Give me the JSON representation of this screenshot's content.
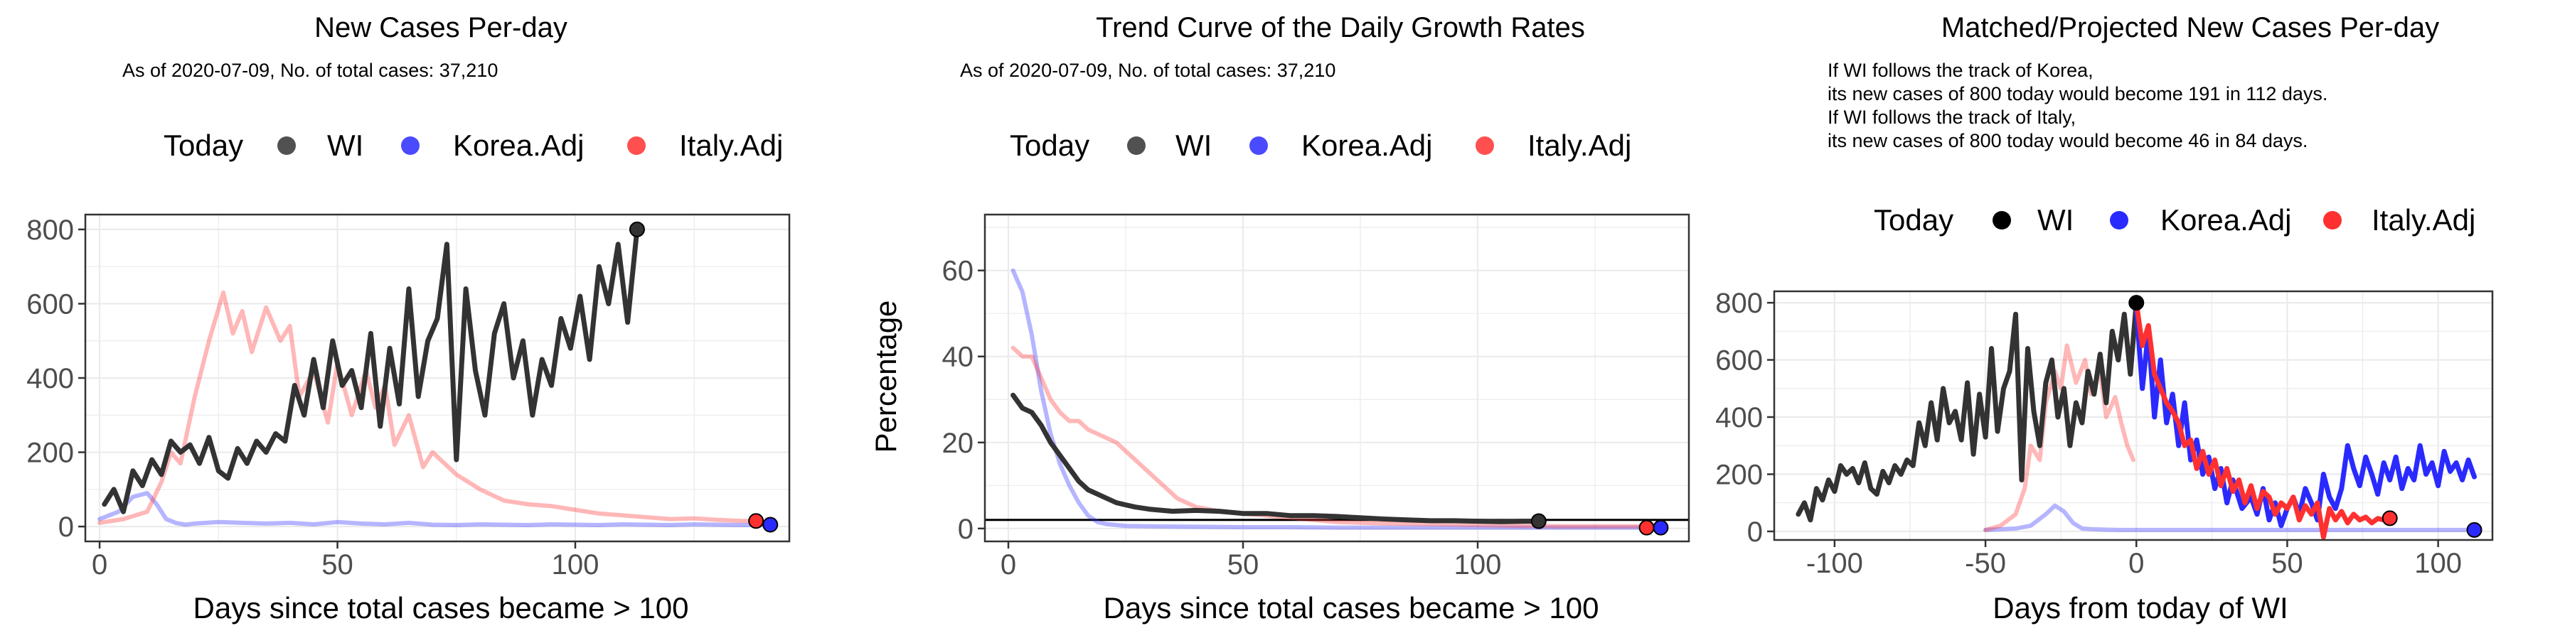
{
  "colors": {
    "wi": "#333333",
    "korea": "#2a2aff",
    "italy": "#ff3030",
    "today": "#000000"
  },
  "chart_data": [
    {
      "type": "line",
      "title": "New Cases Per-day",
      "subtitle": "As of 2020-07-09, No. of total cases: 37,210",
      "notes": [],
      "legend_title": "Today",
      "legend": [
        "WI",
        "Korea.Adj",
        "Italy.Adj"
      ],
      "xlabel": "Days since total cases became > 100",
      "ylabel": "",
      "xlim": [
        -3,
        145
      ],
      "ylim": [
        -40,
        840
      ],
      "xticks": [
        0,
        50,
        100
      ],
      "yticks": [
        0,
        200,
        400,
        600,
        800
      ],
      "grid": true,
      "series": [
        {
          "name": "Korea.Adj",
          "color": "#2a2aff",
          "opacity": 0.35,
          "x": [
            0,
            4,
            7,
            10,
            12,
            14,
            16,
            18,
            20,
            25,
            30,
            35,
            40,
            45,
            50,
            55,
            60,
            65,
            70,
            75,
            80,
            85,
            90,
            95,
            100,
            105,
            110,
            115,
            120,
            125,
            130,
            135,
            140
          ],
          "y": [
            20,
            40,
            80,
            90,
            60,
            20,
            10,
            5,
            8,
            12,
            10,
            8,
            10,
            6,
            12,
            8,
            6,
            10,
            5,
            4,
            6,
            5,
            4,
            6,
            5,
            4,
            6,
            5,
            4,
            6,
            5,
            4,
            5
          ]
        },
        {
          "name": "Italy.Adj",
          "color": "#ff3030",
          "opacity": 0.35,
          "x": [
            0,
            5,
            10,
            13,
            15,
            17,
            20,
            23,
            26,
            28,
            30,
            32,
            35,
            38,
            40,
            42,
            45,
            48,
            50,
            53,
            56,
            58,
            60,
            62,
            65,
            68,
            70,
            75,
            80,
            85,
            90,
            95,
            100,
            105,
            110,
            115,
            120,
            125,
            130,
            135,
            138
          ],
          "y": [
            10,
            20,
            40,
            120,
            200,
            170,
            350,
            500,
            630,
            520,
            580,
            470,
            590,
            500,
            540,
            350,
            420,
            280,
            440,
            300,
            420,
            320,
            380,
            220,
            300,
            160,
            200,
            140,
            100,
            70,
            60,
            55,
            45,
            35,
            30,
            25,
            20,
            22,
            18,
            15,
            15
          ]
        },
        {
          "name": "WI",
          "color": "#333333",
          "opacity": 1,
          "x": [
            1,
            3,
            5,
            7,
            9,
            11,
            13,
            15,
            17,
            19,
            21,
            23,
            25,
            27,
            29,
            31,
            33,
            35,
            37,
            39,
            41,
            43,
            45,
            47,
            49,
            51,
            53,
            55,
            57,
            59,
            61,
            63,
            65,
            67,
            69,
            71,
            73,
            75,
            77,
            79,
            81,
            83,
            85,
            87,
            89,
            91,
            93,
            95,
            97,
            99,
            101,
            103,
            105,
            107,
            109,
            111,
            113
          ],
          "y": [
            60,
            100,
            40,
            150,
            110,
            180,
            140,
            230,
            200,
            220,
            170,
            240,
            150,
            130,
            210,
            170,
            230,
            200,
            250,
            230,
            380,
            300,
            450,
            320,
            500,
            380,
            420,
            320,
            520,
            270,
            480,
            330,
            640,
            350,
            500,
            560,
            760,
            180,
            640,
            420,
            300,
            520,
            600,
            400,
            500,
            300,
            450,
            380,
            560,
            480,
            620,
            450,
            700,
            600,
            760,
            550,
            800
          ]
        }
      ],
      "today_points": [
        {
          "name": "WI",
          "x": 113,
          "y": 800,
          "color": "#333333"
        },
        {
          "name": "Italy.Adj",
          "x": 138,
          "y": 15,
          "color": "#ff3030"
        },
        {
          "name": "Korea.Adj",
          "x": 141,
          "y": 5,
          "color": "#2a2aff"
        }
      ],
      "hline": null
    },
    {
      "type": "line",
      "title": "Trend Curve of the Daily Growth Rates",
      "subtitle": "As of 2020-07-09, No. of total cases: 37,210",
      "notes": [],
      "legend_title": "Today",
      "legend": [
        "WI",
        "Korea.Adj",
        "Italy.Adj"
      ],
      "xlabel": "Days since total cases became > 100",
      "ylabel": "Percentage",
      "xlim": [
        -5,
        145
      ],
      "ylim": [
        -3,
        73
      ],
      "xticks": [
        0,
        50,
        100
      ],
      "yticks": [
        0,
        20,
        40,
        60
      ],
      "grid": true,
      "series": [
        {
          "name": "Korea.Adj",
          "color": "#2a2aff",
          "opacity": 0.35,
          "x": [
            1,
            3,
            5,
            7,
            9,
            11,
            13,
            15,
            17,
            19,
            21,
            25,
            30,
            40,
            50,
            60,
            70,
            80,
            90,
            100,
            110,
            120,
            130,
            140
          ],
          "y": [
            60,
            55,
            45,
            32,
            22,
            15,
            10,
            6,
            3,
            1.5,
            1,
            0.6,
            0.5,
            0.4,
            0.3,
            0.3,
            0.2,
            0.2,
            0.2,
            0.2,
            0.2,
            0.2,
            0.2,
            0.2
          ]
        },
        {
          "name": "Italy.Adj",
          "color": "#ff3030",
          "opacity": 0.35,
          "x": [
            1,
            3,
            5,
            7,
            9,
            11,
            13,
            15,
            17,
            19,
            21,
            23,
            25,
            27,
            30,
            33,
            36,
            40,
            45,
            50,
            55,
            60,
            65,
            70,
            80,
            90,
            100,
            110,
            120,
            130,
            138
          ],
          "y": [
            42,
            40,
            40,
            35,
            30,
            27,
            25,
            25,
            23,
            22,
            21,
            20,
            18,
            16,
            13,
            10,
            7,
            5,
            4,
            3.5,
            3,
            2.5,
            2,
            1.5,
            1.2,
            1,
            0.8,
            0.6,
            0.5,
            0.5,
            0.5
          ]
        },
        {
          "name": "WI",
          "color": "#333333",
          "opacity": 1,
          "x": [
            1,
            3,
            5,
            7,
            9,
            11,
            13,
            15,
            17,
            19,
            21,
            23,
            25,
            27,
            30,
            35,
            40,
            45,
            50,
            55,
            60,
            65,
            70,
            75,
            80,
            85,
            90,
            95,
            100,
            105,
            110,
            113
          ],
          "y": [
            31,
            28,
            27,
            24,
            20,
            17,
            14,
            11,
            9,
            8,
            7,
            6,
            5.5,
            5,
            4.5,
            4,
            4.2,
            4,
            3.5,
            3.5,
            3,
            3,
            2.8,
            2.5,
            2.2,
            2,
            1.8,
            1.8,
            1.7,
            1.6,
            1.7,
            1.7
          ]
        }
      ],
      "today_points": [
        {
          "name": "WI",
          "x": 113,
          "y": 1.7,
          "color": "#333333"
        },
        {
          "name": "Italy.Adj",
          "x": 136,
          "y": 0.2,
          "color": "#ff3030"
        },
        {
          "name": "Korea.Adj",
          "x": 139,
          "y": 0.2,
          "color": "#2a2aff"
        }
      ],
      "hline": 2
    },
    {
      "type": "line",
      "title": "Matched/Projected New Cases Per-day",
      "subtitle": "",
      "notes": [
        "If WI follows the track of Korea,",
        "its new cases of 800 today would become 191 in 112 days.",
        "If WI follows the track of Italy,",
        "its new cases of 800 today would become 46 in 84 days."
      ],
      "legend_title": "Today",
      "legend": [
        "WI",
        "Korea.Adj",
        "Italy.Adj"
      ],
      "xlabel": "Days from today of WI",
      "ylabel": "",
      "xlim": [
        -120,
        118
      ],
      "ylim": [
        -30,
        840
      ],
      "xticks": [
        -100,
        -50,
        0,
        50,
        100
      ],
      "yticks": [
        0,
        200,
        400,
        600,
        800
      ],
      "grid": true,
      "series": [
        {
          "name": "Korea.Adj",
          "color": "#2a2aff",
          "opacity": 0.35,
          "x": [
            -50,
            -40,
            -35,
            -30,
            -27,
            -24,
            -21,
            -18,
            -15,
            -10,
            -5,
            0,
            20,
            40,
            60,
            80,
            100,
            112
          ],
          "y": [
            5,
            10,
            20,
            60,
            90,
            70,
            30,
            10,
            8,
            6,
            5,
            5,
            5,
            5,
            5,
            5,
            5,
            5
          ]
        },
        {
          "name": "Italy.Adj",
          "color": "#ff3030",
          "opacity": 0.35,
          "x": [
            -50,
            -45,
            -40,
            -37,
            -35,
            -32,
            -30,
            -27,
            -25,
            -23,
            -20,
            -17,
            -15,
            -12,
            -10,
            -7,
            -5,
            -3,
            -1
          ],
          "y": [
            5,
            20,
            60,
            150,
            300,
            250,
            450,
            560,
            500,
            650,
            520,
            600,
            480,
            560,
            400,
            470,
            380,
            300,
            250
          ]
        },
        {
          "name": "WI",
          "color": "#333333",
          "opacity": 1,
          "x": [
            -112,
            -110,
            -108,
            -106,
            -104,
            -102,
            -100,
            -98,
            -96,
            -94,
            -92,
            -90,
            -88,
            -86,
            -84,
            -82,
            -80,
            -78,
            -76,
            -74,
            -72,
            -70,
            -68,
            -66,
            -64,
            -62,
            -60,
            -58,
            -56,
            -54,
            -52,
            -50,
            -48,
            -46,
            -44,
            -42,
            -40,
            -38,
            -36,
            -34,
            -32,
            -30,
            -28,
            -26,
            -24,
            -22,
            -20,
            -18,
            -16,
            -14,
            -12,
            -10,
            -8,
            -6,
            -4,
            -2,
            0
          ],
          "y": [
            60,
            100,
            40,
            150,
            110,
            180,
            140,
            230,
            200,
            220,
            170,
            240,
            150,
            130,
            210,
            170,
            230,
            200,
            250,
            230,
            380,
            300,
            450,
            320,
            500,
            380,
            420,
            320,
            520,
            270,
            480,
            330,
            640,
            350,
            500,
            560,
            760,
            180,
            640,
            420,
            300,
            520,
            600,
            400,
            500,
            300,
            450,
            380,
            560,
            480,
            620,
            450,
            700,
            600,
            760,
            550,
            800
          ]
        },
        {
          "name": "Korea.Adj",
          "color": "#2a2aff",
          "opacity": 1,
          "x": [
            0,
            2,
            4,
            6,
            8,
            10,
            12,
            14,
            16,
            18,
            20,
            22,
            24,
            26,
            28,
            30,
            32,
            35,
            38,
            40,
            42,
            44,
            46,
            48,
            50,
            52,
            54,
            56,
            58,
            60,
            62,
            64,
            66,
            68,
            70,
            72,
            74,
            76,
            78,
            80,
            82,
            84,
            86,
            88,
            90,
            92,
            94,
            96,
            98,
            100,
            102,
            104,
            106,
            108,
            110,
            112
          ],
          "y": [
            780,
            500,
            700,
            400,
            600,
            380,
            480,
            300,
            450,
            250,
            320,
            200,
            260,
            150,
            220,
            100,
            180,
            80,
            120,
            60,
            150,
            40,
            100,
            20,
            80,
            120,
            60,
            150,
            100,
            40,
            200,
            120,
            80,
            150,
            300,
            220,
            160,
            260,
            200,
            130,
            240,
            180,
            260,
            150,
            220,
            180,
            300,
            200,
            240,
            160,
            280,
            210,
            240,
            180,
            250,
            191
          ]
        },
        {
          "name": "Italy.Adj",
          "color": "#ff3030",
          "opacity": 1,
          "x": [
            0,
            2,
            4,
            6,
            8,
            10,
            12,
            14,
            16,
            18,
            20,
            22,
            24,
            26,
            28,
            30,
            32,
            34,
            36,
            38,
            40,
            42,
            44,
            46,
            48,
            50,
            52,
            54,
            56,
            58,
            60,
            62,
            64,
            66,
            68,
            70,
            72,
            74,
            76,
            78,
            80,
            82,
            84
          ],
          "y": [
            800,
            650,
            720,
            550,
            500,
            450,
            420,
            380,
            300,
            320,
            220,
            280,
            200,
            250,
            160,
            220,
            140,
            180,
            100,
            160,
            80,
            140,
            120,
            60,
            100,
            80,
            120,
            40,
            90,
            60,
            100,
            -20,
            80,
            40,
            70,
            30,
            60,
            40,
            50,
            30,
            45,
            40,
            46
          ]
        }
      ],
      "today_points": [
        {
          "name": "WI",
          "x": 0,
          "y": 800,
          "color": "#000000"
        },
        {
          "name": "Italy.Adj",
          "x": 84,
          "y": 46,
          "color": "#ff3030"
        },
        {
          "name": "Korea.Adj",
          "x": 112,
          "y": 5,
          "color": "#2a2aff"
        }
      ],
      "hline": null
    }
  ]
}
